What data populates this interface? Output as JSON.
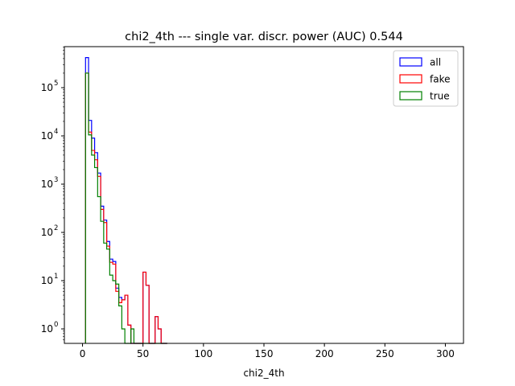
{
  "chart_data": {
    "type": "step-histogram",
    "title": "chi2_4th --- single var. discr. power (AUC) 0.544",
    "xlabel": "chi2_4th",
    "ylabel": "",
    "xlim": [
      -15,
      315
    ],
    "ylim_log10": [
      -0.3,
      5.85
    ],
    "yscale": "log",
    "x_ticks": [
      0,
      50,
      100,
      150,
      200,
      250,
      300
    ],
    "x_tick_labels": [
      "0",
      "50",
      "100",
      "150",
      "200",
      "250",
      "300"
    ],
    "y_ticks": [
      0,
      1,
      2,
      3,
      4,
      5
    ],
    "y_tick_labels": [
      "10",
      "10",
      "10",
      "10",
      "10",
      "10"
    ],
    "y_tick_exponents": [
      "0",
      "1",
      "2",
      "3",
      "4",
      "5"
    ],
    "legend_position": "upper right",
    "bin_width": 2.5,
    "x_start": 2.5,
    "series": [
      {
        "name": "all",
        "color": "#0000ff",
        "values": [
          420000,
          21000,
          9000,
          4500,
          1700,
          350,
          180,
          65,
          28,
          25,
          7,
          4.5,
          4,
          5,
          1.2,
          0.001,
          0.001,
          0.001,
          0.001,
          15,
          8,
          0.001,
          0.001,
          1.8,
          1,
          0.001,
          0.001
        ]
      },
      {
        "name": "fake",
        "color": "#ff0000",
        "values": [
          200000,
          12000,
          5000,
          3200,
          1450,
          300,
          160,
          52,
          24,
          22,
          6,
          3.5,
          4,
          5,
          1.2,
          0.001,
          0.001,
          0.001,
          0.001,
          15,
          8,
          0.001,
          0.001,
          1.8,
          1,
          0.001,
          0.001
        ]
      },
      {
        "name": "true",
        "color": "#008000",
        "values": [
          200000,
          10500,
          4000,
          2200,
          550,
          170,
          60,
          45,
          13,
          10,
          8.5,
          3,
          1,
          0.001,
          0.001,
          1,
          0.001,
          0.001,
          0.001,
          0.001,
          0.001,
          0.001,
          0.001,
          0.001,
          0.001,
          0.001,
          0.001
        ]
      }
    ]
  }
}
